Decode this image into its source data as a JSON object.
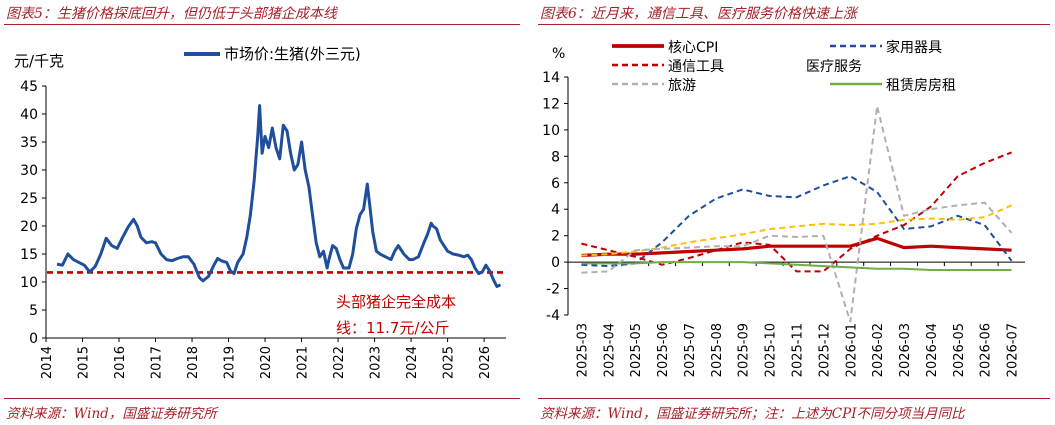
{
  "left": {
    "title": "图表5：生猪价格探底回升，但仍低于头部猪企成本线",
    "source": "资料来源：Wind，国盛证券研究所",
    "unit_label": "元/千克",
    "annotation_line1": "头部猪企完全成本",
    "annotation_line2": "线：11.7元/公斤"
  },
  "right": {
    "title": "图表6：近月来，通信工具、医疗服务价格快速上涨",
    "source": "资料来源：Wind，国盛证券研究所；注：上述为CPI不同分项当月同比",
    "unit_label": "%"
  },
  "chart_data": [
    {
      "type": "line",
      "ylabel": "元/千克",
      "ylim": [
        0,
        45
      ],
      "yticks": [
        0,
        5,
        10,
        15,
        20,
        25,
        30,
        35,
        40,
        45
      ],
      "xlim": [
        2014,
        2026.6
      ],
      "xticks": [
        "2014",
        "2015",
        "2016",
        "2017",
        "2018",
        "2019",
        "2020",
        "2021",
        "2022",
        "2023",
        "2024",
        "2025",
        "2026"
      ],
      "legend_position": "top",
      "series": [
        {
          "name": "市场价:生猪(外三元)",
          "color": "#1f4e9c",
          "points": [
            [
              2014.3,
              13.2
            ],
            [
              2014.45,
              13.0
            ],
            [
              2014.6,
              15.0
            ],
            [
              2014.75,
              14.0
            ],
            [
              2014.9,
              13.5
            ],
            [
              2015.05,
              13.0
            ],
            [
              2015.2,
              11.8
            ],
            [
              2015.35,
              12.8
            ],
            [
              2015.5,
              15.0
            ],
            [
              2015.65,
              17.8
            ],
            [
              2015.8,
              16.5
            ],
            [
              2015.95,
              16.0
            ],
            [
              2016.1,
              18.0
            ],
            [
              2016.25,
              19.8
            ],
            [
              2016.4,
              21.2
            ],
            [
              2016.5,
              20.0
            ],
            [
              2016.6,
              18.0
            ],
            [
              2016.75,
              17.0
            ],
            [
              2016.9,
              17.2
            ],
            [
              2017.0,
              17.0
            ],
            [
              2017.15,
              15.0
            ],
            [
              2017.3,
              14.0
            ],
            [
              2017.45,
              13.8
            ],
            [
              2017.6,
              14.2
            ],
            [
              2017.75,
              14.5
            ],
            [
              2017.9,
              14.5
            ],
            [
              2018.05,
              13.2
            ],
            [
              2018.2,
              10.8
            ],
            [
              2018.3,
              10.2
            ],
            [
              2018.45,
              11.0
            ],
            [
              2018.6,
              13.0
            ],
            [
              2018.7,
              14.2
            ],
            [
              2018.8,
              13.8
            ],
            [
              2018.95,
              13.5
            ],
            [
              2019.05,
              12.0
            ],
            [
              2019.15,
              11.5
            ],
            [
              2019.25,
              13.5
            ],
            [
              2019.4,
              15.0
            ],
            [
              2019.5,
              18.0
            ],
            [
              2019.6,
              22.0
            ],
            [
              2019.7,
              28.0
            ],
            [
              2019.8,
              36.0
            ],
            [
              2019.85,
              41.5
            ],
            [
              2019.92,
              33.0
            ],
            [
              2020.0,
              36.0
            ],
            [
              2020.1,
              34.0
            ],
            [
              2020.2,
              37.5
            ],
            [
              2020.3,
              34.0
            ],
            [
              2020.4,
              32.0
            ],
            [
              2020.5,
              38.0
            ],
            [
              2020.6,
              37.0
            ],
            [
              2020.7,
              33.0
            ],
            [
              2020.8,
              30.0
            ],
            [
              2020.9,
              31.0
            ],
            [
              2021.0,
              35.0
            ],
            [
              2021.1,
              30.0
            ],
            [
              2021.2,
              27.0
            ],
            [
              2021.3,
              22.0
            ],
            [
              2021.4,
              17.0
            ],
            [
              2021.5,
              14.5
            ],
            [
              2021.6,
              15.5
            ],
            [
              2021.7,
              12.5
            ],
            [
              2021.75,
              14.0
            ],
            [
              2021.85,
              16.5
            ],
            [
              2021.95,
              16.0
            ],
            [
              2022.05,
              14.0
            ],
            [
              2022.15,
              12.5
            ],
            [
              2022.3,
              12.5
            ],
            [
              2022.4,
              15.0
            ],
            [
              2022.5,
              19.5
            ],
            [
              2022.6,
              22.0
            ],
            [
              2022.7,
              23.0
            ],
            [
              2022.8,
              27.5
            ],
            [
              2022.88,
              23.0
            ],
            [
              2022.95,
              19.0
            ],
            [
              2023.05,
              15.5
            ],
            [
              2023.15,
              15.0
            ],
            [
              2023.3,
              14.5
            ],
            [
              2023.45,
              14.0
            ],
            [
              2023.55,
              15.5
            ],
            [
              2023.65,
              16.5
            ],
            [
              2023.8,
              15.0
            ],
            [
              2023.95,
              14.0
            ],
            [
              2024.05,
              14.0
            ],
            [
              2024.2,
              14.5
            ],
            [
              2024.35,
              17.0
            ],
            [
              2024.45,
              18.5
            ],
            [
              2024.55,
              20.5
            ],
            [
              2024.6,
              20.0
            ],
            [
              2024.7,
              19.5
            ],
            [
              2024.8,
              17.5
            ],
            [
              2024.9,
              16.5
            ],
            [
              2025.0,
              15.5
            ],
            [
              2025.15,
              15.0
            ],
            [
              2025.3,
              14.8
            ],
            [
              2025.45,
              14.5
            ],
            [
              2025.55,
              14.8
            ],
            [
              2025.65,
              14.0
            ],
            [
              2025.75,
              12.5
            ],
            [
              2025.85,
              11.5
            ],
            [
              2025.95,
              11.8
            ],
            [
              2026.05,
              13.0
            ],
            [
              2026.15,
              12.0
            ],
            [
              2026.25,
              10.5
            ],
            [
              2026.35,
              9.2
            ],
            [
              2026.45,
              9.5
            ]
          ]
        },
        {
          "name": "头部猪企完全成本线",
          "color": "#c00000",
          "dashed": true,
          "value": 11.7
        }
      ]
    },
    {
      "type": "line",
      "ylabel": "%",
      "ylim": [
        -4,
        14
      ],
      "yticks": [
        -4,
        -2,
        0,
        2,
        4,
        6,
        8,
        10,
        12,
        14
      ],
      "categories": [
        "2025-03",
        "2025-04",
        "2025-05",
        "2025-06",
        "2025-07",
        "2025-08",
        "2025-09",
        "2025-10",
        "2025-11",
        "2025-12",
        "2026-01",
        "2026-02",
        "2026-03",
        "2026-04",
        "2026-05",
        "2026-06",
        "2026-07"
      ],
      "legend_position": "top",
      "series": [
        {
          "name": "核心CPI",
          "color": "#c00000",
          "dash": "solid",
          "width": 3.2,
          "values": [
            0.5,
            0.6,
            0.6,
            0.7,
            0.8,
            0.9,
            1.0,
            1.2,
            1.2,
            1.2,
            1.2,
            1.8,
            1.1,
            1.2,
            1.1,
            1.0,
            0.9
          ]
        },
        {
          "name": "家用器具",
          "color": "#1f4e9c",
          "dash": "dashed",
          "width": 2,
          "values": [
            -0.2,
            -0.3,
            -0.1,
            1.5,
            3.5,
            4.8,
            5.5,
            5.0,
            4.9,
            5.8,
            6.5,
            5.3,
            2.5,
            2.7,
            3.5,
            2.8,
            0.1
          ]
        },
        {
          "name": "通信工具",
          "color": "#c00000",
          "dash": "dashed",
          "width": 2,
          "values": [
            1.4,
            0.9,
            0.4,
            -0.2,
            0.3,
            0.9,
            1.5,
            1.3,
            -0.7,
            -0.7,
            1.0,
            2.0,
            2.8,
            4.2,
            6.5,
            7.5,
            8.3
          ]
        },
        {
          "name": "医疗服务",
          "color": "#ffc000",
          "dash": "dashed",
          "width": 2,
          "values": [
            0.5,
            0.6,
            0.8,
            1.1,
            1.5,
            1.8,
            2.1,
            2.5,
            2.7,
            2.9,
            2.8,
            2.9,
            3.2,
            3.3,
            3.2,
            3.4,
            4.3
          ]
        },
        {
          "name": "旅游",
          "color": "#b0b0b0",
          "dash": "dashed",
          "width": 2,
          "values": [
            -0.8,
            -0.7,
            0.9,
            1.0,
            1.1,
            1.2,
            1.2,
            2.0,
            1.9,
            2.0,
            -4.5,
            11.8,
            3.5,
            4.0,
            4.3,
            4.5,
            2.2
          ]
        },
        {
          "name": "租赁房房租",
          "color": "#70ad47",
          "dash": "solid",
          "width": 2,
          "values": [
            -0.1,
            -0.1,
            -0.1,
            0.0,
            0.0,
            0.0,
            0.0,
            -0.1,
            -0.2,
            -0.3,
            -0.4,
            -0.5,
            -0.5,
            -0.6,
            -0.6,
            -0.6,
            -0.6
          ]
        }
      ]
    }
  ]
}
